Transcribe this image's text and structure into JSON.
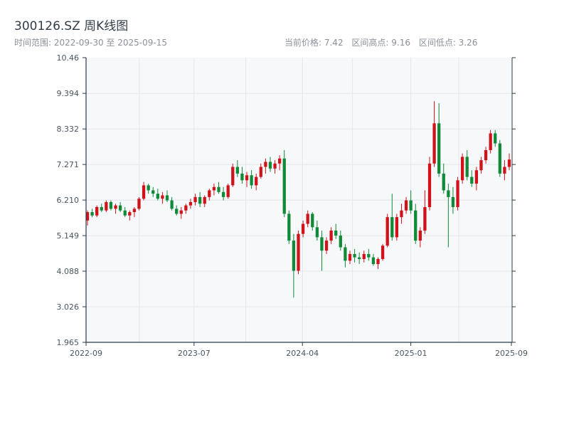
{
  "header": {
    "title": "300126.SZ 周K线图",
    "range_label": "时间范围: 2022-09-30 至 2025-09-15",
    "price_label": "当前价格: 7.42",
    "high_label": "区间高点: 9.16",
    "low_label": "区间低点: 3.26"
  },
  "colors": {
    "up": "#d0121b",
    "down": "#0e8a38",
    "plot_bg": "#f7f8fa",
    "grid": "#e3e6ea",
    "axis": "#2b3a4a"
  },
  "chart_data": {
    "type": "candlestick",
    "title": "300126.SZ 周K线图",
    "ylim": [
      1.965,
      10.46
    ],
    "y_ticks": [
      "10.46",
      "9.394",
      "8.332",
      "7.271",
      "6.210",
      "5.149",
      "4.088",
      "3.026",
      "1.965"
    ],
    "x_ticks": [
      "2022-09",
      "2023-07",
      "2024-04",
      "2025-01",
      "2025-09"
    ],
    "x_range": [
      "2022-09-30",
      "2025-09-15"
    ],
    "grid": true,
    "candles": [
      [
        5.6,
        5.9,
        5.45,
        5.85
      ],
      [
        5.85,
        5.95,
        5.7,
        5.75
      ],
      [
        5.75,
        6.05,
        5.7,
        6.0
      ],
      [
        6.0,
        6.1,
        5.85,
        5.9
      ],
      [
        5.9,
        6.2,
        5.85,
        6.15
      ],
      [
        6.15,
        6.2,
        5.9,
        5.95
      ],
      [
        5.95,
        6.1,
        5.8,
        6.05
      ],
      [
        6.05,
        6.15,
        5.85,
        5.9
      ],
      [
        5.9,
        6.0,
        5.7,
        5.75
      ],
      [
        5.75,
        5.9,
        5.6,
        5.85
      ],
      [
        5.85,
        6.0,
        5.7,
        5.95
      ],
      [
        5.95,
        6.3,
        5.9,
        6.25
      ],
      [
        6.25,
        6.75,
        6.2,
        6.65
      ],
      [
        6.65,
        6.7,
        6.4,
        6.5
      ],
      [
        6.5,
        6.6,
        6.3,
        6.4
      ],
      [
        6.4,
        6.55,
        6.2,
        6.25
      ],
      [
        6.25,
        6.45,
        6.1,
        6.35
      ],
      [
        6.35,
        6.5,
        6.15,
        6.2
      ],
      [
        6.2,
        6.3,
        5.9,
        5.95
      ],
      [
        5.95,
        6.05,
        5.75,
        5.8
      ],
      [
        5.8,
        6.0,
        5.65,
        5.9
      ],
      [
        5.9,
        6.1,
        5.8,
        6.05
      ],
      [
        6.05,
        6.25,
        5.95,
        6.15
      ],
      [
        6.15,
        6.4,
        6.05,
        6.3
      ],
      [
        6.3,
        6.45,
        6.0,
        6.1
      ],
      [
        6.1,
        6.35,
        6.0,
        6.3
      ],
      [
        6.3,
        6.55,
        6.2,
        6.5
      ],
      [
        6.5,
        6.7,
        6.35,
        6.6
      ],
      [
        6.6,
        6.75,
        6.4,
        6.45
      ],
      [
        6.45,
        6.6,
        6.2,
        6.3
      ],
      [
        6.3,
        6.7,
        6.25,
        6.65
      ],
      [
        6.65,
        7.3,
        6.6,
        7.2
      ],
      [
        7.2,
        7.4,
        6.9,
        7.0
      ],
      [
        7.0,
        7.2,
        6.7,
        6.8
      ],
      [
        6.8,
        7.05,
        6.6,
        6.95
      ],
      [
        6.95,
        7.1,
        6.55,
        6.65
      ],
      [
        6.65,
        7.0,
        6.5,
        6.9
      ],
      [
        6.9,
        7.3,
        6.85,
        7.2
      ],
      [
        7.2,
        7.45,
        7.0,
        7.35
      ],
      [
        7.35,
        7.5,
        7.05,
        7.15
      ],
      [
        7.15,
        7.4,
        7.0,
        7.3
      ],
      [
        7.3,
        7.55,
        7.1,
        7.45
      ],
      [
        7.45,
        7.7,
        5.7,
        5.8
      ],
      [
        5.8,
        5.9,
        4.9,
        5.0
      ],
      [
        5.0,
        5.2,
        3.3,
        4.1
      ],
      [
        4.1,
        5.3,
        4.0,
        5.2
      ],
      [
        5.2,
        5.6,
        5.1,
        5.5
      ],
      [
        5.5,
        5.9,
        5.4,
        5.8
      ],
      [
        5.8,
        5.85,
        5.3,
        5.4
      ],
      [
        5.4,
        5.6,
        5.0,
        5.1
      ],
      [
        5.1,
        5.3,
        4.1,
        4.7
      ],
      [
        4.7,
        5.1,
        4.6,
        5.0
      ],
      [
        5.0,
        5.4,
        4.9,
        5.3
      ],
      [
        5.3,
        5.5,
        5.05,
        5.15
      ],
      [
        5.15,
        5.3,
        4.7,
        4.8
      ],
      [
        4.8,
        4.9,
        4.2,
        4.4
      ],
      [
        4.4,
        4.7,
        4.3,
        4.6
      ],
      [
        4.6,
        4.75,
        4.35,
        4.5
      ],
      [
        4.5,
        4.65,
        4.3,
        4.45
      ],
      [
        4.45,
        4.7,
        4.35,
        4.6
      ],
      [
        4.6,
        4.75,
        4.4,
        4.5
      ],
      [
        4.5,
        4.6,
        4.25,
        4.3
      ],
      [
        4.3,
        4.5,
        4.15,
        4.45
      ],
      [
        4.45,
        4.9,
        4.4,
        4.85
      ],
      [
        4.85,
        5.8,
        4.8,
        5.7
      ],
      [
        5.7,
        6.4,
        5.0,
        5.1
      ],
      [
        5.1,
        5.8,
        5.0,
        5.7
      ],
      [
        5.7,
        6.1,
        5.5,
        5.9
      ],
      [
        5.9,
        6.3,
        5.8,
        6.2
      ],
      [
        6.2,
        6.5,
        5.8,
        5.9
      ],
      [
        5.9,
        6.1,
        4.9,
        5.0
      ],
      [
        5.0,
        5.4,
        4.8,
        5.3
      ],
      [
        5.3,
        6.5,
        5.2,
        6.0
      ],
      [
        6.0,
        7.5,
        5.9,
        7.3
      ],
      [
        7.3,
        9.16,
        7.2,
        8.5
      ],
      [
        8.5,
        9.1,
        6.9,
        7.0
      ],
      [
        7.0,
        7.3,
        6.4,
        6.5
      ],
      [
        6.5,
        6.7,
        4.8,
        6.3
      ],
      [
        6.3,
        6.6,
        5.8,
        6.0
      ],
      [
        6.0,
        6.9,
        5.9,
        6.8
      ],
      [
        6.8,
        7.6,
        6.7,
        7.5
      ],
      [
        7.5,
        7.7,
        6.8,
        6.9
      ],
      [
        6.9,
        7.1,
        6.6,
        6.7
      ],
      [
        6.7,
        7.2,
        6.5,
        7.1
      ],
      [
        7.1,
        7.5,
        7.0,
        7.4
      ],
      [
        7.4,
        7.8,
        7.3,
        7.7
      ],
      [
        7.7,
        8.3,
        7.6,
        8.2
      ],
      [
        8.2,
        8.3,
        7.8,
        7.9
      ],
      [
        7.9,
        8.0,
        6.9,
        7.0
      ],
      [
        7.0,
        7.4,
        6.8,
        7.2
      ],
      [
        7.2,
        7.6,
        7.1,
        7.42
      ]
    ]
  }
}
